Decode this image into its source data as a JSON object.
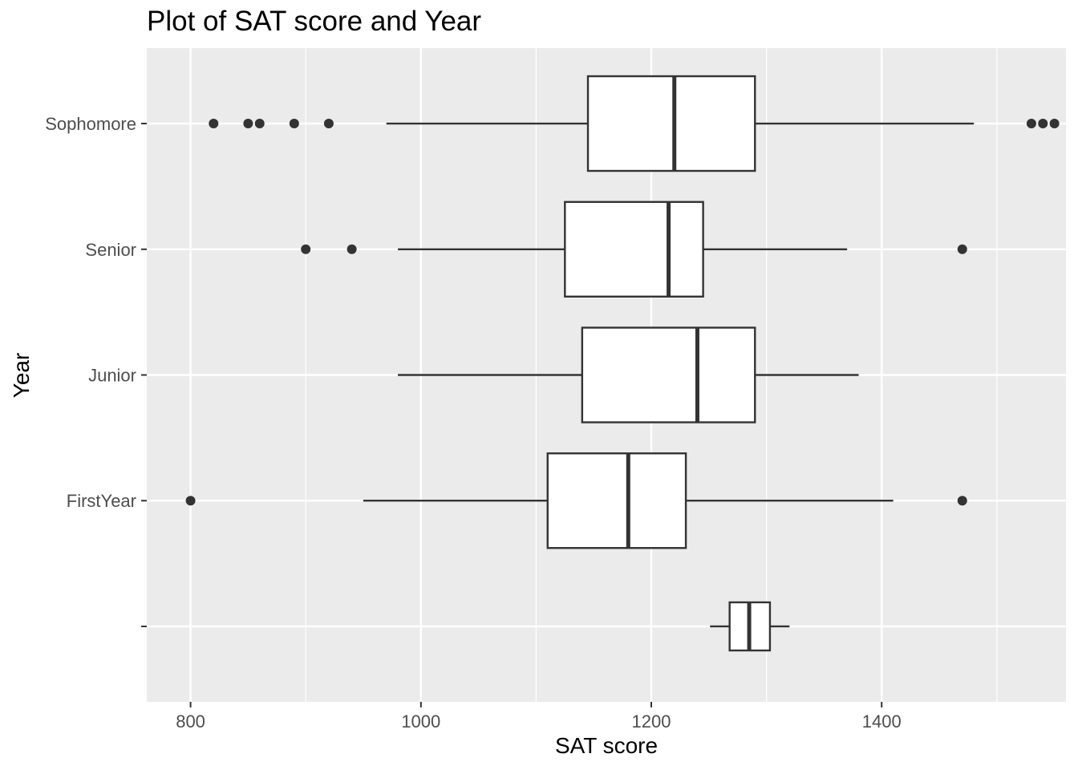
{
  "chart_data": {
    "type": "boxplot",
    "orientation": "horizontal",
    "title": "Plot of SAT score and Year",
    "xlabel": "SAT score",
    "ylabel": "Year",
    "xlim": [
      762,
      1560
    ],
    "xticks": [
      800,
      1000,
      1200,
      1400
    ],
    "xtick_labels": [
      "800",
      "1000",
      "1200",
      "1400"
    ],
    "grid": true,
    "categories": [
      "",
      "FirstYear",
      "Junior",
      "Senior",
      "Sophomore"
    ],
    "boxes": [
      {
        "category": "",
        "whisker_low": 1251,
        "q1": 1268,
        "median": 1285,
        "q3": 1303,
        "whisker_high": 1320,
        "outliers": [],
        "narrow": true
      },
      {
        "category": "FirstYear",
        "whisker_low": 950,
        "q1": 1110,
        "median": 1180,
        "q3": 1230,
        "whisker_high": 1410,
        "outliers": [
          800,
          1470
        ]
      },
      {
        "category": "Junior",
        "whisker_low": 980,
        "q1": 1140,
        "median": 1240,
        "q3": 1290,
        "whisker_high": 1380,
        "outliers": []
      },
      {
        "category": "Senior",
        "whisker_low": 980,
        "q1": 1125,
        "median": 1215,
        "q3": 1245,
        "whisker_high": 1370,
        "outliers": [
          900,
          940,
          1470
        ]
      },
      {
        "category": "Sophomore",
        "whisker_low": 970,
        "q1": 1145,
        "median": 1220,
        "q3": 1290,
        "whisker_high": 1480,
        "outliers": [
          820,
          850,
          860,
          890,
          920,
          1530,
          1540,
          1550
        ]
      }
    ],
    "colors": {
      "panel": "#ebebeb",
      "grid": "#ffffff",
      "box_fill": "#ffffff",
      "box_line": "#333333",
      "outlier": "#333333",
      "tick": "#333333"
    }
  }
}
